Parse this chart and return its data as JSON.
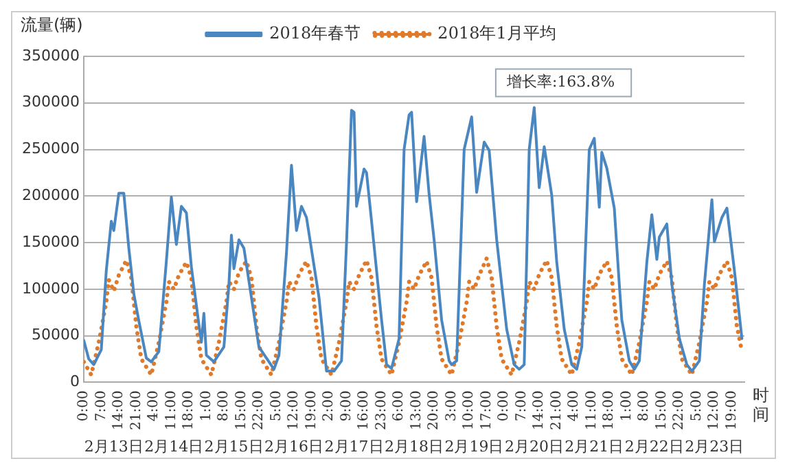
{
  "chart_data": {
    "type": "line",
    "xlabel": "时间",
    "ylabel": "流量(辆)",
    "xlim": [
      "--02-13T00:00",
      "--02-24T00:00"
    ],
    "ylim": [
      0,
      350000
    ],
    "yticks": [
      0,
      50000,
      100000,
      150000,
      200000,
      250000,
      300000,
      350000
    ],
    "xticks": [
      {
        "value": "--02-13T00:00",
        "label": "0:00"
      },
      {
        "value": "--02-13T07:00",
        "label": "7:00"
      },
      {
        "value": "--02-13T14:00",
        "label": "14:00"
      },
      {
        "value": "--02-13T21:00",
        "label": "21:00"
      },
      {
        "value": "--02-14T04:00",
        "label": "4:00"
      },
      {
        "value": "--02-14T11:00",
        "label": "11:00"
      },
      {
        "value": "--02-14T18:00",
        "label": "18:00"
      },
      {
        "value": "--02-15T01:00",
        "label": "1:00"
      },
      {
        "value": "--02-15T08:00",
        "label": "8:00"
      },
      {
        "value": "--02-15T15:00",
        "label": "15:00"
      },
      {
        "value": "--02-15T22:00",
        "label": "22:00"
      },
      {
        "value": "--02-16T05:00",
        "label": "5:00"
      },
      {
        "value": "--02-16T12:00",
        "label": "12:00"
      },
      {
        "value": "--02-16T19:00",
        "label": "19:00"
      },
      {
        "value": "--02-17T02:00",
        "label": "2:00"
      },
      {
        "value": "--02-17T09:00",
        "label": "9:00"
      },
      {
        "value": "--02-17T16:00",
        "label": "16:00"
      },
      {
        "value": "--02-17T23:00",
        "label": "23:00"
      },
      {
        "value": "--02-18T06:00",
        "label": "6:00"
      },
      {
        "value": "--02-18T13:00",
        "label": "13:00"
      },
      {
        "value": "--02-18T20:00",
        "label": "20:00"
      },
      {
        "value": "--02-19T03:00",
        "label": "3:00"
      },
      {
        "value": "--02-19T10:00",
        "label": "10:00"
      },
      {
        "value": "--02-19T17:00",
        "label": "17:00"
      },
      {
        "value": "--02-20T00:00",
        "label": "0:00"
      },
      {
        "value": "--02-20T07:00",
        "label": "7:00"
      },
      {
        "value": "--02-20T14:00",
        "label": "14:00"
      },
      {
        "value": "--02-20T21:00",
        "label": "21:00"
      },
      {
        "value": "--02-21T04:00",
        "label": "4:00"
      },
      {
        "value": "--02-21T11:00",
        "label": "11:00"
      },
      {
        "value": "--02-21T18:00",
        "label": "18:00"
      },
      {
        "value": "--02-22T01:00",
        "label": "1:00"
      },
      {
        "value": "--02-22T08:00",
        "label": "8:00"
      },
      {
        "value": "--02-22T15:00",
        "label": "15:00"
      },
      {
        "value": "--02-22T22:00",
        "label": "22:00"
      },
      {
        "value": "--02-23T05:00",
        "label": "5:00"
      },
      {
        "value": "--02-23T12:00",
        "label": "12:00"
      },
      {
        "value": "--02-23T19:00",
        "label": "19:00"
      }
    ],
    "grid": "y",
    "legend": "top",
    "annotations": [
      "2月13日",
      "2月14日",
      "2月15日",
      "2月16日",
      "2月17日",
      "2月18日",
      "2月19日",
      "2月20日",
      "2月21日",
      "2月22日",
      "2月23日",
      {
        "text": "增长率:163.8%",
        "x": "--02-20T12:00",
        "y": 295000
      }
    ],
    "series": [
      {
        "name": "2018年春节",
        "color": "#4a86c0",
        "line_style": "solid",
        "x": [
          "--02-13T00:00",
          "--02-13T02:00",
          "--02-13T04:00",
          "--02-13T07:00",
          "--02-13T09:00",
          "--02-13T11:00",
          "--02-13T12:00",
          "--02-13T14:00",
          "--02-13T16:00",
          "--02-13T18:00",
          "--02-13T20:00",
          "--02-13T22:00",
          "--02-14T01:00",
          "--02-14T03:00",
          "--02-14T06:00",
          "--02-14T09:00",
          "--02-14T11:00",
          "--02-14T13:00",
          "--02-14T15:00",
          "--02-14T17:00",
          "--02-14T19:00",
          "--02-14T22:00",
          "--02-14T23:00",
          "--02-15T00:00",
          "--02-15T01:00",
          "--02-15T04:00",
          "--02-15T08:00",
          "--02-15T10:00",
          "--02-15T11:00",
          "--02-15T12:00",
          "--02-15T14:00",
          "--02-15T16:00",
          "--02-15T19:00",
          "--02-15T22:00",
          "--02-16T04:00",
          "--02-16T06:00",
          "--02-16T09:00",
          "--02-16T11:00",
          "--02-16T13:00",
          "--02-16T15:00",
          "--02-16T17:00",
          "--02-16T22:00",
          "--02-17T01:00",
          "--02-17T04:00",
          "--02-17T07:00",
          "--02-17T09:00",
          "--02-17T11:00",
          "--02-17T12:00",
          "--02-17T13:00",
          "--02-17T16:00",
          "--02-17T17:00",
          "--02-17T19:00",
          "--02-17T23:00",
          "--02-18T01:00",
          "--02-18T03:00",
          "--02-18T06:00",
          "--02-18T08:00",
          "--02-18T10:00",
          "--02-18T11:00",
          "--02-18T13:00",
          "--02-18T16:00",
          "--02-18T18:00",
          "--02-18T20:00",
          "--02-18T23:00",
          "--02-19T02:00",
          "--02-19T03:00",
          "--02-19T05:00",
          "--02-19T08:00",
          "--02-19T11:00",
          "--02-19T13:00",
          "--02-19T16:00",
          "--02-19T18:00",
          "--02-19T21:00",
          "--02-20T01:00",
          "--02-20T04:00",
          "--02-20T06:00",
          "--02-20T08:00",
          "--02-20T10:00",
          "--02-20T12:00",
          "--02-20T14:00",
          "--02-20T16:00",
          "--02-20T19:00",
          "--02-20T21:00",
          "--02-21T00:00",
          "--02-21T03:00",
          "--02-21T05:00",
          "--02-21T07:00",
          "--02-21T10:00",
          "--02-21T12:00",
          "--02-21T14:00",
          "--02-21T15:00",
          "--02-21T17:00",
          "--02-21T20:00",
          "--02-21T22:00",
          "--02-21T23:00",
          "--02-22T02:00",
          "--02-22T04:00",
          "--02-22T06:00",
          "--02-22T09:00",
          "--02-22T11:00",
          "--02-22T13:00",
          "--02-22T14:00",
          "--02-22T17:00",
          "--02-22T19:00",
          "--02-22T22:00",
          "--02-23T01:00",
          "--02-23T03:00",
          "--02-23T06:00",
          "--02-23T08:00",
          "--02-23T11:00",
          "--02-23T12:00",
          "--02-23T15:00",
          "--02-23T17:00",
          "--02-23T20:00",
          "--02-23T23:00"
        ],
        "values": [
          45000,
          25000,
          19000,
          35000,
          120000,
          173000,
          163000,
          203000,
          203000,
          144000,
          95000,
          66000,
          26000,
          22000,
          33000,
          130000,
          199000,
          148000,
          189000,
          182000,
          124000,
          62000,
          43000,
          74000,
          29000,
          22000,
          38000,
          105000,
          158000,
          122000,
          153000,
          144000,
          91000,
          38000,
          14000,
          29000,
          139000,
          233000,
          163000,
          189000,
          177000,
          91000,
          12000,
          12000,
          23000,
          150000,
          292000,
          290000,
          189000,
          229000,
          225000,
          173000,
          67000,
          19000,
          15000,
          47000,
          250000,
          287000,
          290000,
          194000,
          264000,
          202000,
          153000,
          67000,
          23000,
          19000,
          23000,
          250000,
          285000,
          204000,
          258000,
          249000,
          153000,
          57000,
          19000,
          14000,
          19000,
          250000,
          295000,
          209000,
          253000,
          201000,
          129000,
          57000,
          19000,
          14000,
          38000,
          250000,
          262000,
          188000,
          247000,
          230000,
          187000,
          105000,
          67000,
          23000,
          14000,
          23000,
          129000,
          180000,
          132000,
          156000,
          170000,
          105000,
          47000,
          19000,
          12000,
          23000,
          105000,
          196000,
          151000,
          177000,
          187000,
          120000,
          47000
        ]
      },
      {
        "name": "2018年1月平均",
        "color": "#e07a2a",
        "line_style": "dotted",
        "x": [
          "--02-13T00:00",
          "--02-13T03:00",
          "--02-13T06:00",
          "--02-13T09:00",
          "--02-13T10:00",
          "--02-13T12:00",
          "--02-13T14:00",
          "--02-13T17:00",
          "--02-13T19:00",
          "--02-13T21:00",
          "--02-13T23:00",
          "--02-14T03:00",
          "--02-14T06:00",
          "--02-14T09:00",
          "--02-14T10:00",
          "--02-14T12:00",
          "--02-14T14:00",
          "--02-14T17:00",
          "--02-14T19:00",
          "--02-14T21:00",
          "--02-14T23:00",
          "--02-15T03:00",
          "--02-15T06:00",
          "--02-15T09:00",
          "--02-15T10:00",
          "--02-15T12:00",
          "--02-15T14:00",
          "--02-15T17:00",
          "--02-15T19:00",
          "--02-15T21:00",
          "--02-15T23:00",
          "--02-16T03:00",
          "--02-16T06:00",
          "--02-16T09:00",
          "--02-16T10:00",
          "--02-16T12:00",
          "--02-16T14:00",
          "--02-16T17:00",
          "--02-16T19:00",
          "--02-16T21:00",
          "--02-16T23:00",
          "--02-17T03:00",
          "--02-17T06:00",
          "--02-17T09:00",
          "--02-17T10:00",
          "--02-17T12:00",
          "--02-17T14:00",
          "--02-17T17:00",
          "--02-17T19:00",
          "--02-17T21:00",
          "--02-17T23:00",
          "--02-18T03:00",
          "--02-18T06:00",
          "--02-18T09:00",
          "--02-18T10:00",
          "--02-18T12:00",
          "--02-18T14:00",
          "--02-18T17:00",
          "--02-18T19:00",
          "--02-18T21:00",
          "--02-18T23:00",
          "--02-19T03:00",
          "--02-19T06:00",
          "--02-19T09:00",
          "--02-19T10:00",
          "--02-19T12:00",
          "--02-19T14:00",
          "--02-19T17:00",
          "--02-19T19:00",
          "--02-19T21:00",
          "--02-19T23:00",
          "--02-20T03:00",
          "--02-20T06:00",
          "--02-20T09:00",
          "--02-20T10:00",
          "--02-20T12:00",
          "--02-20T14:00",
          "--02-20T17:00",
          "--02-20T19:00",
          "--02-20T21:00",
          "--02-20T23:00",
          "--02-21T03:00",
          "--02-21T06:00",
          "--02-21T09:00",
          "--02-21T10:00",
          "--02-21T12:00",
          "--02-21T14:00",
          "--02-21T17:00",
          "--02-21T19:00",
          "--02-21T21:00",
          "--02-21T23:00",
          "--02-22T03:00",
          "--02-22T06:00",
          "--02-22T09:00",
          "--02-22T10:00",
          "--02-22T12:00",
          "--02-22T14:00",
          "--02-22T17:00",
          "--02-22T19:00",
          "--02-22T21:00",
          "--02-22T23:00",
          "--02-23T03:00",
          "--02-23T06:00",
          "--02-23T09:00",
          "--02-23T10:00",
          "--02-23T12:00",
          "--02-23T14:00",
          "--02-23T17:00",
          "--02-23T19:00",
          "--02-23T21:00",
          "--02-23T23:00"
        ],
        "values": [
          22000,
          8000,
          43000,
          86000,
          110000,
          98000,
          115000,
          131000,
          112000,
          60000,
          25000,
          8000,
          43000,
          86000,
          108000,
          100000,
          115000,
          129000,
          112000,
          60000,
          25000,
          8000,
          43000,
          86000,
          108000,
          100000,
          118000,
          130000,
          112000,
          60000,
          25000,
          8000,
          43000,
          86000,
          108000,
          100000,
          116000,
          130000,
          112000,
          60000,
          25000,
          8000,
          43000,
          86000,
          108000,
          100000,
          115000,
          131000,
          112000,
          60000,
          25000,
          8000,
          43000,
          86000,
          108000,
          100000,
          115000,
          130000,
          112000,
          60000,
          25000,
          8000,
          43000,
          86000,
          108000,
          100000,
          115000,
          133000,
          112000,
          60000,
          25000,
          8000,
          43000,
          86000,
          108000,
          100000,
          116000,
          131000,
          112000,
          60000,
          25000,
          8000,
          43000,
          86000,
          108000,
          100000,
          116000,
          130000,
          112000,
          60000,
          25000,
          8000,
          43000,
          86000,
          108000,
          100000,
          116000,
          130000,
          112000,
          60000,
          25000,
          8000,
          43000,
          86000,
          108000,
          100000,
          116000,
          130000,
          112000,
          60000,
          33000
        ]
      }
    ]
  }
}
